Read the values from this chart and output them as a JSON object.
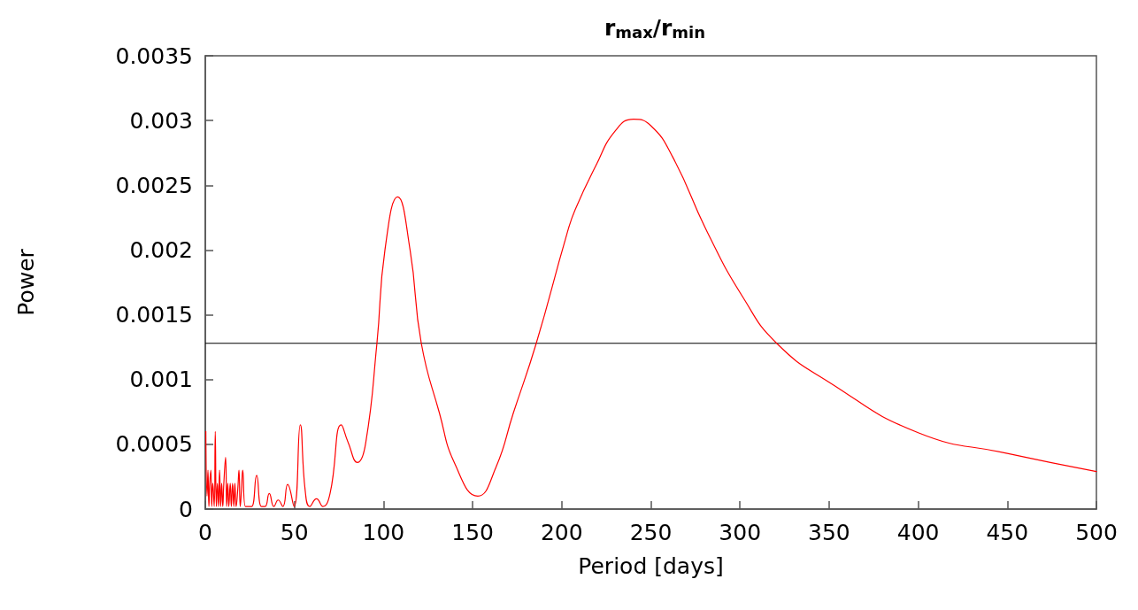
{
  "chart_data": {
    "type": "line",
    "title": "r$_{max}$/r$_{min}$",
    "xlabel": "Period [days]",
    "ylabel": "Power",
    "x": [
      0.3,
      1,
      1.5,
      2,
      2.5,
      3.1,
      3.6,
      4.2,
      5,
      5.6,
      6.2,
      6.8,
      7.4,
      8,
      8.6,
      9.2,
      9.8,
      10.4,
      11.4,
      12,
      12.6,
      13.2,
      14,
      14.6,
      15.3,
      16,
      16.6,
      17.3,
      18.2,
      18.9,
      19.6,
      20.3,
      21,
      22.5,
      24,
      26,
      28.8,
      31.5,
      33.5,
      35.9,
      38.5,
      40.9,
      43.5,
      46.2,
      49.8,
      53.3,
      56,
      58.6,
      62.4,
      66,
      70,
      76.3,
      80,
      85.4,
      90,
      96.3,
      100.8,
      107.9,
      114.9,
      121.2,
      131.4,
      140,
      152.9,
      163,
      172.8,
      185.7,
      202.6,
      207.5,
      219.1,
      230,
      240.3,
      250,
      262.2,
      282,
      301.9,
      320.6,
      350,
      400,
      450,
      500
    ],
    "series": [
      {
        "color": "#ff0000",
        "values": [
          0.0006,
          0.0001,
          0.0003,
          2e-05,
          0.0002,
          0.0003,
          2e-05,
          0.0002,
          2e-05,
          0.0006,
          2e-05,
          0.0002,
          2e-05,
          0.0003,
          2e-05,
          0.0002,
          2e-05,
          0.0002,
          0.0004,
          2e-05,
          0.0002,
          2e-05,
          0.0002,
          2e-05,
          0.0002,
          2e-05,
          0.0002,
          2e-05,
          0.00015,
          0.0003,
          2e-05,
          0.00015,
          0.0003,
          2e-05,
          2e-05,
          2e-05,
          0.00026,
          2e-05,
          2e-05,
          0.00012,
          2e-05,
          7e-05,
          2e-05,
          0.00019,
          2e-05,
          0.00065,
          0.00015,
          2e-05,
          8e-05,
          2e-05,
          0.00012,
          0.00065,
          0.00052,
          0.00036,
          0.00051,
          0.00128,
          0.002,
          0.00241,
          0.002,
          0.00128,
          0.00074,
          0.00035,
          0.0001,
          0.00032,
          0.00074,
          0.00128,
          0.00211,
          0.00231,
          0.00265,
          0.00292,
          0.00301,
          0.00296,
          0.00272,
          0.00213,
          0.00163,
          0.00128,
          0.00098,
          0.00059,
          0.00043,
          0.00029
        ]
      }
    ],
    "xlim": [
      0,
      500
    ],
    "xticks": [
      0,
      50,
      100,
      150,
      200,
      250,
      300,
      350,
      400,
      450,
      500
    ],
    "ylim": [
      0,
      0.0035
    ],
    "yticks": [
      0,
      0.0005,
      0.001,
      0.0015,
      0.002,
      0.0025,
      0.003,
      0.0035
    ],
    "ref_lines": [
      {
        "axis": "y",
        "value": 0.00128,
        "color": "#000000"
      }
    ],
    "grid": false,
    "marker": "none",
    "line_style": "solid"
  }
}
